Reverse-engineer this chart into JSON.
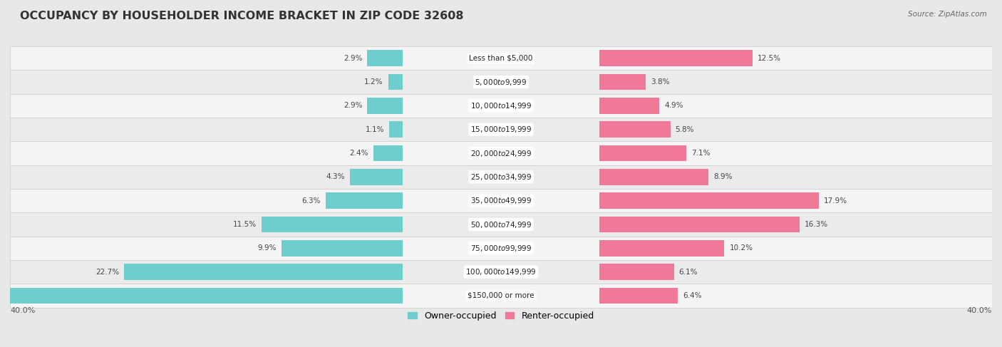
{
  "title": "OCCUPANCY BY HOUSEHOLDER INCOME BRACKET IN ZIP CODE 32608",
  "source": "Source: ZipAtlas.com",
  "categories": [
    "Less than $5,000",
    "$5,000 to $9,999",
    "$10,000 to $14,999",
    "$15,000 to $19,999",
    "$20,000 to $24,999",
    "$25,000 to $34,999",
    "$35,000 to $49,999",
    "$50,000 to $74,999",
    "$75,000 to $99,999",
    "$100,000 to $149,999",
    "$150,000 or more"
  ],
  "owner_values": [
    2.9,
    1.2,
    2.9,
    1.1,
    2.4,
    4.3,
    6.3,
    11.5,
    9.9,
    22.7,
    34.7
  ],
  "renter_values": [
    12.5,
    3.8,
    4.9,
    5.8,
    7.1,
    8.9,
    17.9,
    16.3,
    10.2,
    6.1,
    6.4
  ],
  "owner_color": "#6ECECE",
  "renter_color": "#F07898",
  "bg_color": "#e8e8e8",
  "row_bg_even": "#f5f5f5",
  "row_bg_odd": "#ebebeb",
  "max_val": 40.0,
  "title_fontsize": 11.5,
  "label_fontsize": 7.5,
  "value_fontsize": 7.5,
  "legend_label_owner": "Owner-occupied",
  "legend_label_renter": "Renter-occupied",
  "axis_label_left": "40.0%",
  "axis_label_right": "40.0%"
}
